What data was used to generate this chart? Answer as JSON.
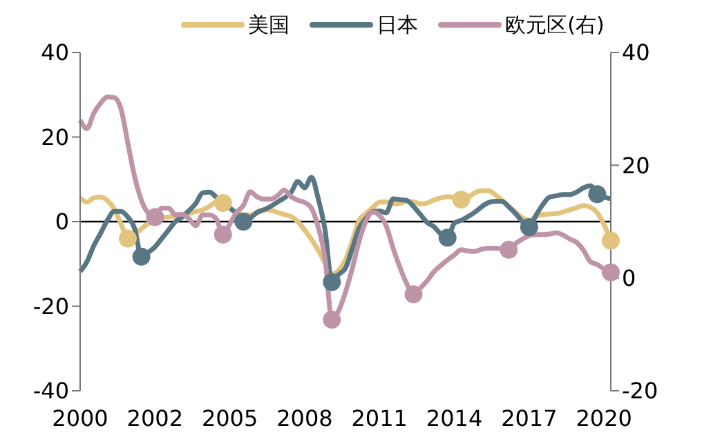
{
  "chart_data": {
    "type": "line",
    "categories": [
      "2000",
      null,
      null,
      null,
      null,
      null,
      null,
      null,
      null,
      null,
      null,
      "2002",
      null,
      null,
      null,
      null,
      null,
      null,
      null,
      null,
      null,
      null,
      "2005",
      null,
      null,
      null,
      null,
      null,
      null,
      null,
      null,
      null,
      null,
      "2008",
      null,
      null,
      null,
      null,
      null,
      null,
      null,
      null,
      null,
      null,
      "2011",
      null,
      null,
      null,
      null,
      null,
      null,
      null,
      null,
      null,
      null,
      "2014",
      null,
      null,
      null,
      null,
      null,
      null,
      null,
      null,
      null,
      null,
      "2017",
      null,
      null,
      null,
      null,
      null,
      null,
      null,
      null,
      null,
      null,
      "2020",
      null
    ],
    "ylim": [
      -40,
      40
    ],
    "yticks": [
      -40,
      -20,
      0,
      20,
      40
    ],
    "y2lim": [
      -20,
      40
    ],
    "y2ticks": [
      -20,
      0,
      20,
      40
    ],
    "legend": "top",
    "line_style": "solid",
    "ref_lines": [
      {
        "axis": "y",
        "value": 0,
        "color": "#000000"
      }
    ],
    "series": [
      {
        "name": "美国",
        "color": "#e3c47d",
        "values": [
          5.7,
          4.6,
          5.6,
          5.8,
          5,
          3,
          -0.5,
          -4,
          -3,
          -1.7,
          -0.4,
          0.4,
          0.9,
          1.1,
          1.3,
          1.5,
          1.9,
          2.4,
          2.8,
          3.6,
          4.6,
          4.4,
          3.2,
          2.1,
          1.6,
          1.6,
          2,
          2.8,
          2.7,
          2.2,
          1.7,
          1.2,
          0,
          -2,
          -4.2,
          -6.8,
          -9.8,
          -12.4,
          -11.5,
          -9,
          -4.6,
          0.3,
          1.9,
          3.3,
          4.6,
          4.7,
          4.2,
          4.3,
          4.8,
          4.7,
          4.2,
          4.4,
          5.1,
          5.6,
          5.9,
          5.7,
          5.2,
          5.7,
          6.8,
          7.3,
          7.3,
          6.4,
          5,
          3.6,
          2.2,
          0.9,
          0.2,
          1.2,
          1.7,
          1.8,
          1.9,
          2.3,
          2.8,
          3.3,
          3.8,
          3.4,
          2.1,
          -0.7,
          -4.5
        ]
      },
      {
        "name": "日本",
        "color": "#587684",
        "values": [
          -11.8,
          -9.5,
          -5.7,
          -2.8,
          0.3,
          2.4,
          2.4,
          1.1,
          -1.6,
          -8.3,
          -7.3,
          -6,
          -4,
          -2,
          0,
          1.1,
          2.6,
          4.3,
          6.8,
          7,
          5.8,
          4.5,
          3.2,
          1.9,
          0,
          0.8,
          2.2,
          2.8,
          3.6,
          4.6,
          5.6,
          6.9,
          9.5,
          8,
          10.5,
          5.4,
          -2,
          -14.3,
          -12.5,
          -11,
          -6.4,
          -1.6,
          0.7,
          2.4,
          2.5,
          2.1,
          5.4,
          5.2,
          5,
          3.6,
          1.7,
          -0.2,
          -1.2,
          -2.9,
          -3.8,
          -0.4,
          0.3,
          1.2,
          2.2,
          3.5,
          4.5,
          4.8,
          4.8,
          3.5,
          1.9,
          0,
          -1.3,
          1.5,
          4,
          5.8,
          6.1,
          6.4,
          6.4,
          7,
          8,
          8.5,
          6.5,
          5.8,
          5.4
        ]
      },
      {
        "name": "欧元区(右)",
        "color": "#bf93a8",
        "axis": "y2",
        "values": [
          28,
          26.5,
          29.2,
          31,
          32.1,
          32,
          30,
          24,
          18,
          13.8,
          11.5,
          10.8,
          12.4,
          12.4,
          11.2,
          11.3,
          10.5,
          9.3,
          11.2,
          11.2,
          10.5,
          7.7,
          9.6,
          11.6,
          12.9,
          15.3,
          14.4,
          14,
          14,
          14.6,
          15.6,
          14.4,
          13.8,
          13.4,
          12.4,
          9,
          3.4,
          -7.4,
          -5.8,
          -2.5,
          1.7,
          6.5,
          10.1,
          11.7,
          11.1,
          9.2,
          5.3,
          1.9,
          -1,
          -2.9,
          -1.8,
          -0.5,
          1.1,
          2.2,
          3.2,
          4.1,
          5,
          4.8,
          4.7,
          5.1,
          5.3,
          5.3,
          5.2,
          5,
          6.1,
          6.9,
          7.5,
          7.7,
          7.7,
          7.8,
          8,
          7.6,
          6.9,
          6.3,
          4.9,
          2.9,
          2.4,
          1.6,
          1
        ]
      },
      {
        "type": "scatter",
        "marker": "circle",
        "color": "#e3c47d",
        "values": [
          null,
          null,
          null,
          null,
          null,
          null,
          null,
          -4,
          null,
          null,
          null,
          null,
          null,
          null,
          null,
          null,
          null,
          null,
          null,
          null,
          null,
          4.4,
          null,
          null,
          null,
          null,
          null,
          null,
          null,
          null,
          null,
          null,
          null,
          null,
          null,
          null,
          null,
          null,
          null,
          null,
          null,
          null,
          null,
          null,
          null,
          null,
          null,
          null,
          null,
          null,
          null,
          null,
          null,
          null,
          null,
          null,
          5.2,
          null,
          null,
          null,
          null,
          null,
          null,
          null,
          null,
          null,
          null,
          null,
          null,
          null,
          null,
          null,
          null,
          null,
          null,
          null,
          null,
          null,
          -4.5
        ]
      },
      {
        "type": "scatter",
        "marker": "circle",
        "color": "#587684",
        "values": [
          null,
          null,
          null,
          null,
          null,
          null,
          null,
          null,
          null,
          -8.3,
          null,
          null,
          null,
          null,
          null,
          null,
          null,
          null,
          null,
          null,
          null,
          null,
          null,
          null,
          0,
          null,
          null,
          null,
          null,
          null,
          null,
          null,
          null,
          null,
          null,
          null,
          null,
          -14.3,
          null,
          null,
          null,
          null,
          null,
          null,
          null,
          null,
          null,
          null,
          null,
          null,
          null,
          null,
          null,
          null,
          -3.8,
          null,
          null,
          null,
          null,
          null,
          null,
          null,
          null,
          null,
          null,
          null,
          -1.3,
          null,
          null,
          null,
          null,
          null,
          null,
          null,
          null,
          null,
          6.5,
          null,
          null
        ]
      },
      {
        "type": "scatter",
        "marker": "circle",
        "color": "#bf93a8",
        "axis": "y2",
        "values": [
          null,
          null,
          null,
          null,
          null,
          null,
          null,
          null,
          null,
          null,
          null,
          10.8,
          null,
          null,
          null,
          null,
          null,
          null,
          null,
          null,
          null,
          7.7,
          null,
          null,
          null,
          null,
          null,
          null,
          null,
          null,
          null,
          null,
          null,
          null,
          null,
          null,
          null,
          -7.4,
          null,
          null,
          null,
          null,
          null,
          null,
          null,
          null,
          null,
          null,
          null,
          -2.9,
          null,
          null,
          null,
          null,
          null,
          null,
          null,
          null,
          null,
          null,
          null,
          null,
          null,
          5,
          null,
          null,
          null,
          null,
          null,
          null,
          null,
          null,
          null,
          null,
          null,
          null,
          null,
          null,
          1
        ]
      }
    ]
  }
}
